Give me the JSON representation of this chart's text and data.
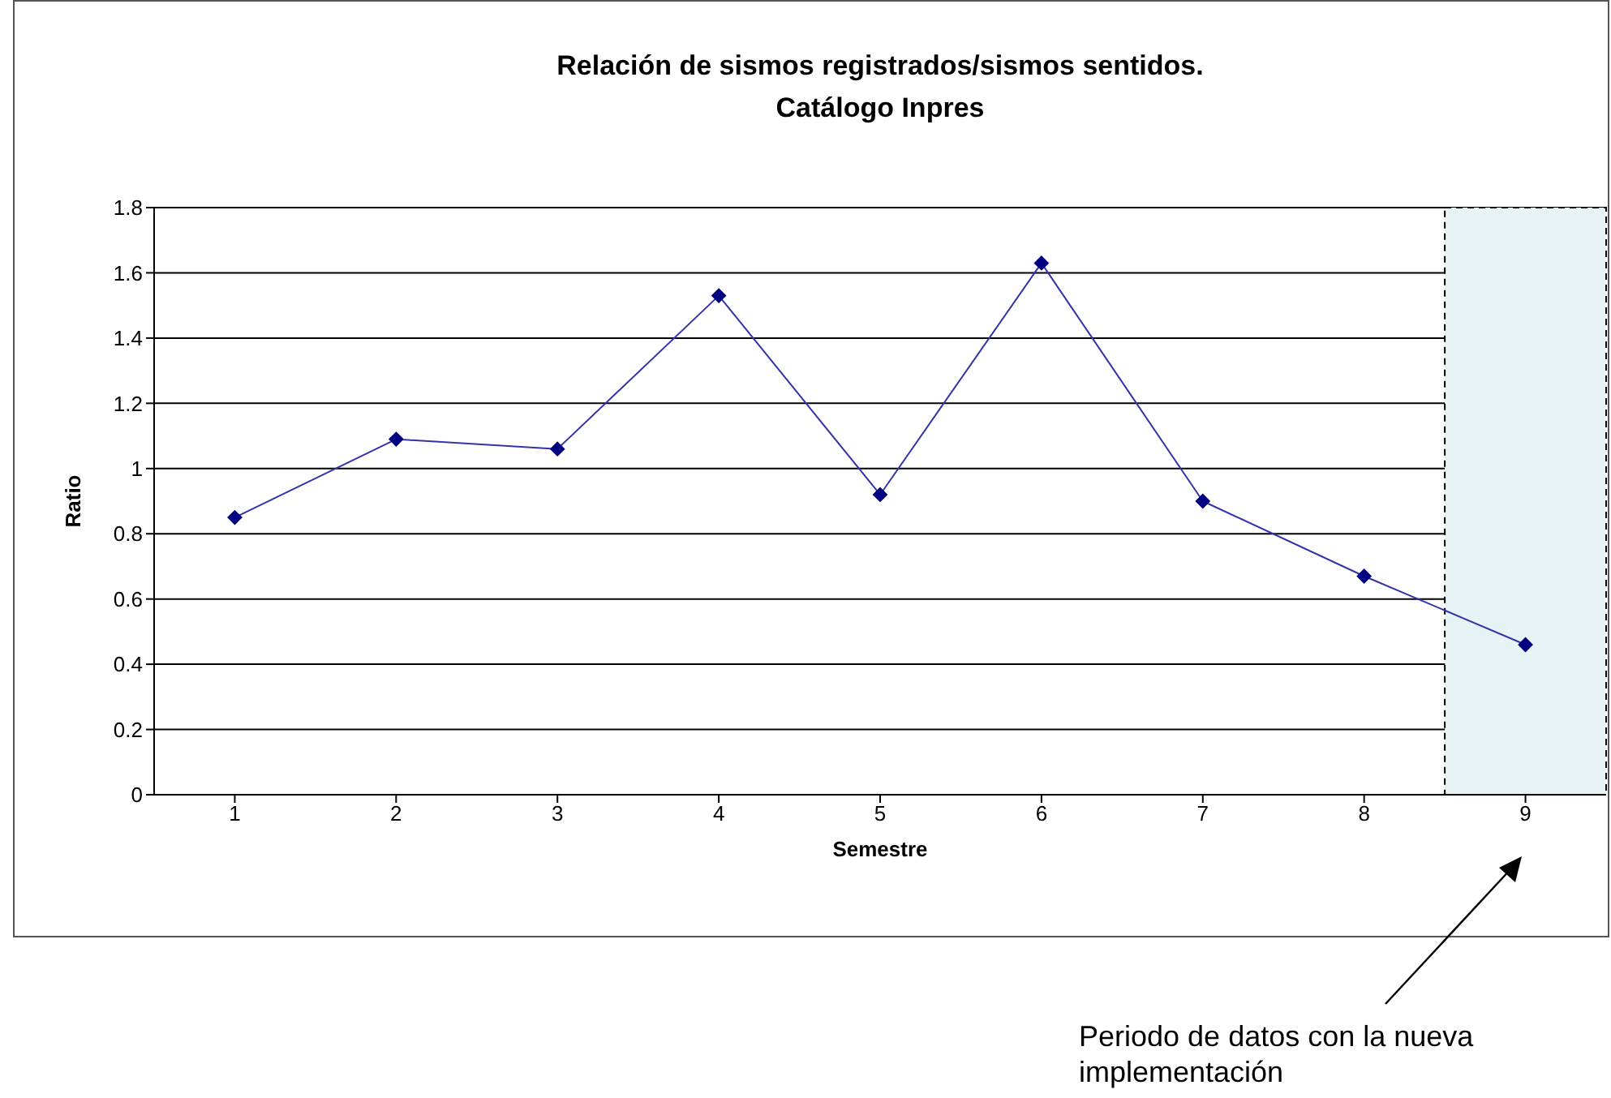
{
  "chart_data": {
    "type": "line",
    "title": "Relación de sismos registrados/sismos sentidos.\nCatálogo Inpres",
    "xlabel": "Semestre",
    "ylabel": "Ratio",
    "x": [
      1,
      2,
      3,
      4,
      5,
      6,
      7,
      8,
      9
    ],
    "values": [
      0.85,
      1.09,
      1.06,
      1.53,
      0.92,
      1.63,
      0.9,
      0.67,
      0.46
    ],
    "color": "#000080",
    "marker": "diamond",
    "line_style": "solid",
    "xlim": [
      0.5,
      9.5
    ],
    "xticks": [
      1,
      2,
      3,
      4,
      5,
      6,
      7,
      8,
      9
    ],
    "ylim": [
      0,
      1.8
    ],
    "yticks": [
      0,
      0.2,
      0.4,
      0.6,
      0.8,
      1,
      1.2,
      1.4,
      1.6,
      1.8
    ],
    "grid": "y",
    "bands": [
      {
        "axis": "x",
        "from": 8.5,
        "to": 9.5,
        "color": "#e8f3f5"
      }
    ],
    "annotations": [
      "Periodo de datos con la nueva implementación"
    ]
  }
}
